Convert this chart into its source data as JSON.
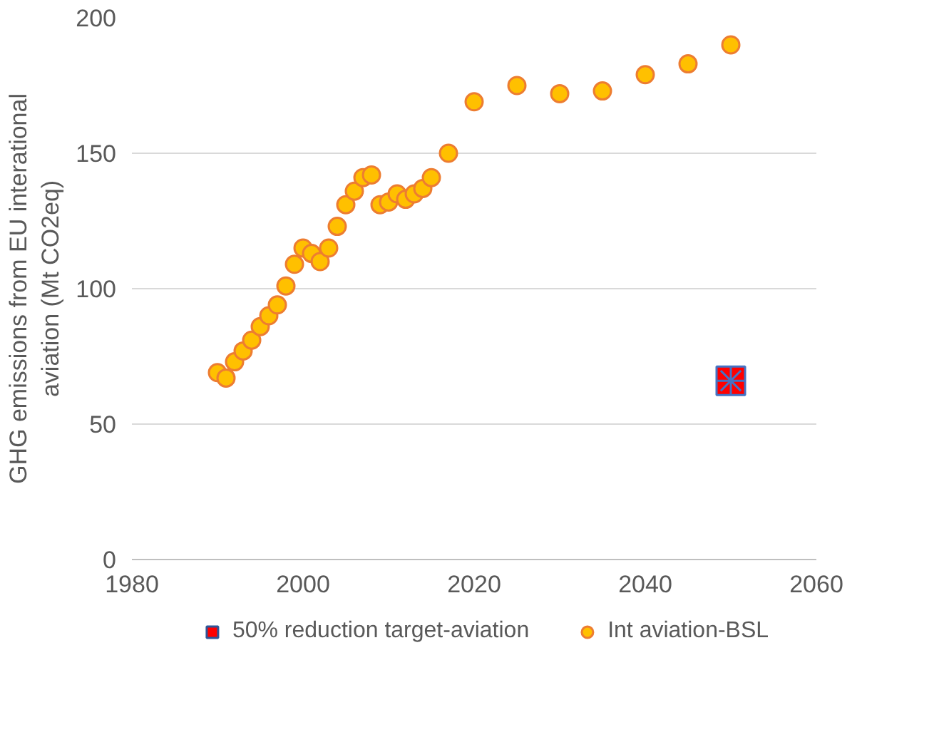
{
  "chart_data": {
    "type": "scatter",
    "ylabel": "GHG emissions from EU interational aviation (Mt CO2eq)",
    "xlim": [
      1980,
      2060
    ],
    "xticks": [
      1980,
      2000,
      2020,
      2040,
      2060
    ],
    "ylim": [
      0,
      200
    ],
    "yticks": [
      0,
      50,
      100,
      150,
      200
    ],
    "grid": "y",
    "legend": "bottom",
    "series": [
      {
        "name": "50% reduction target-aviation",
        "color": "#ff0000",
        "marker": "square",
        "x": [
          2050
        ],
        "values": [
          66
        ]
      },
      {
        "name": "Int aviation-BSL",
        "color": "#ffc000",
        "marker": "circle",
        "x": [
          1990,
          1991,
          1992,
          1993,
          1994,
          1995,
          1996,
          1997,
          1998,
          1999,
          2000,
          2001,
          2002,
          2003,
          2004,
          2005,
          2006,
          2007,
          2008,
          2009,
          2010,
          2011,
          2012,
          2013,
          2014,
          2015,
          2017,
          2020,
          2025,
          2030,
          2035,
          2040,
          2045,
          2050
        ],
        "values": [
          69,
          67,
          73,
          77,
          81,
          86,
          90,
          94,
          101,
          109,
          115,
          113,
          110,
          115,
          123,
          131,
          136,
          141,
          142,
          131,
          132,
          135,
          133,
          135,
          137,
          141,
          150,
          169,
          175,
          172,
          173,
          179,
          183,
          190
        ]
      }
    ]
  }
}
